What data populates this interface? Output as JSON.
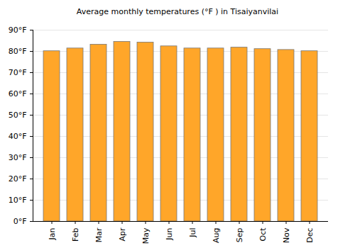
{
  "chart_data": {
    "type": "bar",
    "title": "Average monthly temperatures (°F ) in Tisaiyanvilai",
    "categories": [
      "Jan",
      "Feb",
      "Mar",
      "Apr",
      "May",
      "Jun",
      "Jul",
      "Aug",
      "Sep",
      "Oct",
      "Nov",
      "Dec"
    ],
    "values": [
      80.1,
      81.4,
      83.2,
      84.5,
      84.2,
      82.4,
      81.4,
      81.4,
      81.8,
      81.1,
      80.7,
      80.1
    ],
    "color": "#ffa629",
    "ylim": [
      0,
      90
    ],
    "yticks": [
      {
        "value": 0,
        "label": "0°F"
      },
      {
        "value": 10,
        "label": "10°F"
      },
      {
        "value": 20,
        "label": "20°F"
      },
      {
        "value": 30,
        "label": "30°F"
      },
      {
        "value": 40,
        "label": "40°F"
      },
      {
        "value": 50,
        "label": "50°F"
      },
      {
        "value": 60,
        "label": "60°F"
      },
      {
        "value": 70,
        "label": "70°F"
      },
      {
        "value": 80,
        "label": "80°F"
      },
      {
        "value": 90,
        "label": "90°F"
      }
    ],
    "grid": true
  }
}
